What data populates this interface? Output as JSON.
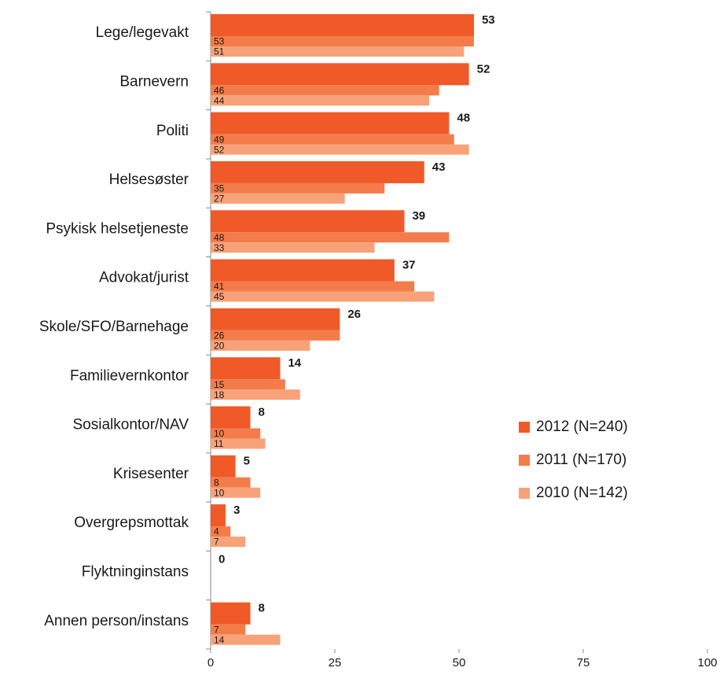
{
  "chart_data": {
    "type": "hbar",
    "categories": [
      "Lege/legevakt",
      "Barnevern",
      "Politi",
      "Helsesøster",
      "Psykisk helsetjeneste",
      "Advokat/jurist",
      "Skole/SFO/Barnehage",
      "Familievernkontor",
      "Sosialkontor/NAV",
      "Krisesenter",
      "Overgrepsmottak",
      "Flyktninginstans",
      "Annen person/instans"
    ],
    "series": [
      {
        "name": "2012 (N=240)",
        "color": "#f05a28",
        "values": [
          53,
          52,
          48,
          43,
          39,
          37,
          26,
          14,
          8,
          5,
          3,
          0,
          8
        ]
      },
      {
        "name": "2011 (N=170)",
        "color": "#f47c4a",
        "values": [
          53,
          46,
          49,
          35,
          48,
          41,
          26,
          15,
          10,
          8,
          4,
          null,
          7
        ]
      },
      {
        "name": "2010 (N=142)",
        "color": "#f8a27a",
        "values": [
          51,
          44,
          52,
          27,
          33,
          45,
          20,
          18,
          11,
          10,
          7,
          null,
          14
        ]
      }
    ],
    "xlim": [
      0,
      100
    ],
    "xticks": [
      0,
      25,
      50,
      75,
      100
    ],
    "legend": "right"
  }
}
